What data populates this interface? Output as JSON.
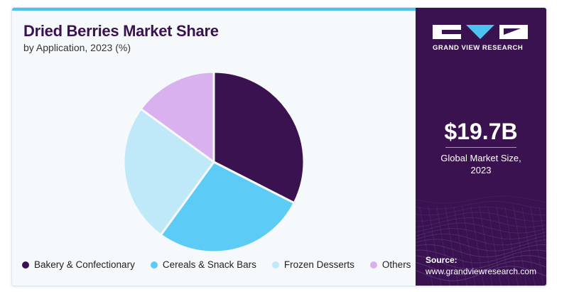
{
  "chart_data": {
    "type": "pie",
    "title": "Dried Berries Market Share",
    "subtitle": "by Application, 2023 (%)",
    "categories": [
      "Bakery & Confectionary",
      "Cereals & Snack Bars",
      "Frozen Desserts",
      "Others"
    ],
    "values": [
      32.5,
      27.5,
      25.0,
      15.0
    ],
    "colors": [
      "#3a1250",
      "#5ccbf5",
      "#bfe8f8",
      "#d8b1ee"
    ],
    "legend_position": "bottom"
  },
  "brand": {
    "name": "GRAND VIEW RESEARCH",
    "logo_icon": "gvr-logo-icon",
    "panel_color": "#3a1250",
    "accent_color": "#4cc3ef"
  },
  "stat": {
    "value": "$19.7B",
    "label": "Global Market Size, 2023"
  },
  "source": {
    "label": "Source:",
    "url": "www.grandviewresearch.com"
  }
}
